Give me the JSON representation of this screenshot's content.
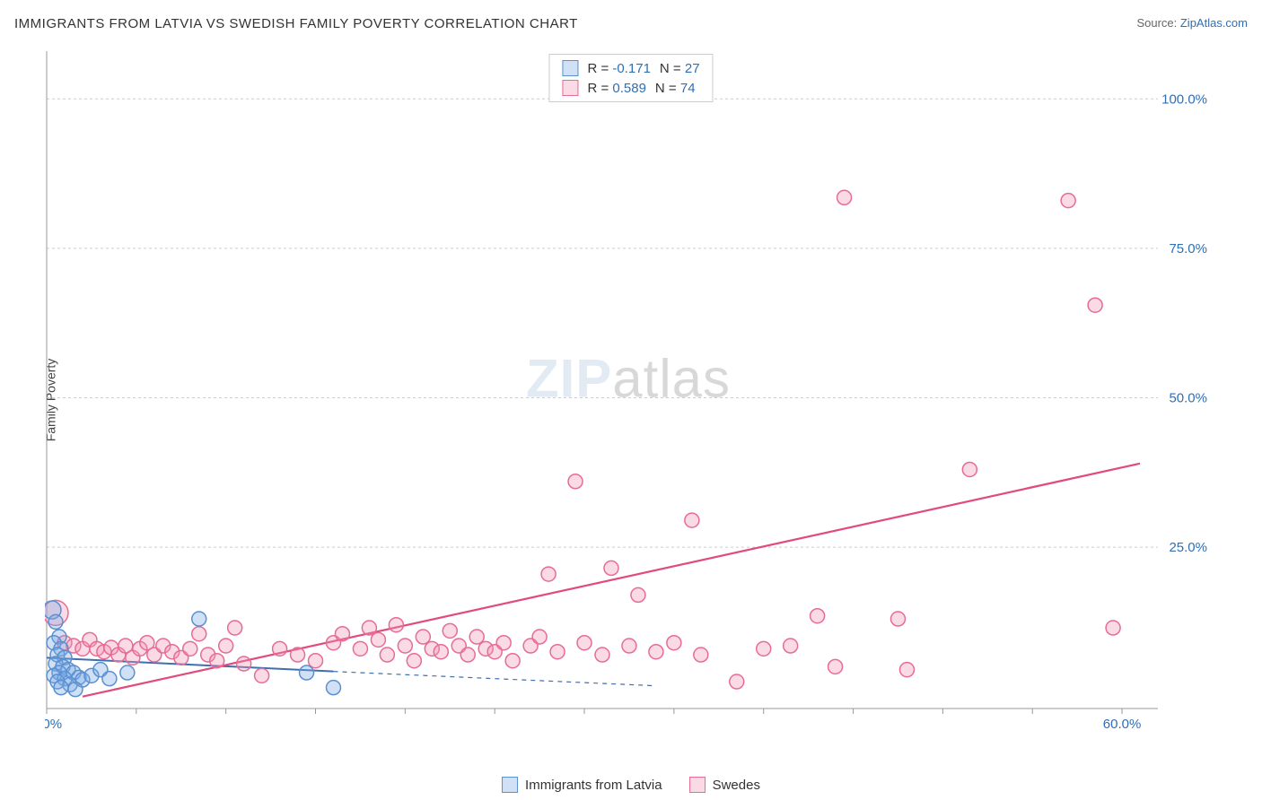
{
  "title": "IMMIGRANTS FROM LATVIA VS SWEDISH FAMILY POVERTY CORRELATION CHART",
  "source": {
    "label": "Source: ",
    "link": "ZipAtlas.com"
  },
  "ylabel": "Family Poverty",
  "watermark": {
    "a": "ZIP",
    "b": "atlas"
  },
  "chart": {
    "type": "scatter",
    "xlim": [
      0,
      62
    ],
    "ylim": [
      -2,
      108
    ],
    "xtick_step": 5,
    "grid_y": [
      25,
      50,
      75,
      100
    ],
    "grid_color": "#cccccc",
    "background": "#ffffff",
    "xticks_labeled": [
      {
        "x": 0,
        "label": "0.0%"
      },
      {
        "x": 60,
        "label": "60.0%"
      }
    ],
    "yticks_labeled": [
      {
        "y": 25,
        "label": "25.0%"
      },
      {
        "y": 50,
        "label": "50.0%"
      },
      {
        "y": 75,
        "label": "75.0%"
      },
      {
        "y": 100,
        "label": "100.0%"
      }
    ],
    "marker_radius": 8,
    "marker_stroke_width": 1.5,
    "series": [
      {
        "id": "latvia",
        "label": "Immigrants from Latvia",
        "fill": "rgba(120,170,230,0.35)",
        "stroke": "#5a8fd0",
        "R": "-0.171",
        "N": "27",
        "regression": {
          "x1": 0,
          "y1": 6.5,
          "x2": 16,
          "y2": 4.2,
          "ext_x2": 34,
          "ext_y2": 1.8,
          "color": "#3e6fb0",
          "width": 2
        },
        "points": [
          {
            "x": 0.3,
            "y": 14.5,
            "r": 10
          },
          {
            "x": 0.5,
            "y": 12.5
          },
          {
            "x": 0.7,
            "y": 10.0
          },
          {
            "x": 0.4,
            "y": 9.0
          },
          {
            "x": 0.8,
            "y": 8.0
          },
          {
            "x": 0.6,
            "y": 7.0
          },
          {
            "x": 1.0,
            "y": 6.5
          },
          {
            "x": 0.5,
            "y": 5.5
          },
          {
            "x": 0.9,
            "y": 5.0
          },
          {
            "x": 1.2,
            "y": 4.5
          },
          {
            "x": 0.7,
            "y": 4.0
          },
          {
            "x": 1.5,
            "y": 4.0
          },
          {
            "x": 0.4,
            "y": 3.5
          },
          {
            "x": 1.0,
            "y": 3.0
          },
          {
            "x": 1.8,
            "y": 3.2
          },
          {
            "x": 0.6,
            "y": 2.5
          },
          {
            "x": 1.3,
            "y": 2.0
          },
          {
            "x": 2.0,
            "y": 2.8
          },
          {
            "x": 0.8,
            "y": 1.5
          },
          {
            "x": 1.6,
            "y": 1.2
          },
          {
            "x": 2.5,
            "y": 3.5
          },
          {
            "x": 3.0,
            "y": 4.5
          },
          {
            "x": 3.5,
            "y": 3.0
          },
          {
            "x": 4.5,
            "y": 4.0
          },
          {
            "x": 8.5,
            "y": 13.0
          },
          {
            "x": 14.5,
            "y": 4.0
          },
          {
            "x": 16.0,
            "y": 1.5
          }
        ]
      },
      {
        "id": "swedes",
        "label": "Swedes",
        "fill": "rgba(240,150,180,0.35)",
        "stroke": "#e86b94",
        "R": "0.589",
        "N": "74",
        "regression": {
          "x1": 2,
          "y1": 0,
          "x2": 61,
          "y2": 39,
          "color": "#e04a7d",
          "width": 2.2
        },
        "points": [
          {
            "x": 0.5,
            "y": 14.0,
            "r": 14
          },
          {
            "x": 1.0,
            "y": 9.0
          },
          {
            "x": 1.5,
            "y": 8.5
          },
          {
            "x": 2.0,
            "y": 8.0
          },
          {
            "x": 2.4,
            "y": 9.5
          },
          {
            "x": 2.8,
            "y": 8.0
          },
          {
            "x": 3.2,
            "y": 7.5
          },
          {
            "x": 3.6,
            "y": 8.2
          },
          {
            "x": 4.0,
            "y": 7.0
          },
          {
            "x": 4.4,
            "y": 8.5
          },
          {
            "x": 4.8,
            "y": 6.5
          },
          {
            "x": 5.2,
            "y": 8.0
          },
          {
            "x": 5.6,
            "y": 9.0
          },
          {
            "x": 6.0,
            "y": 7.0
          },
          {
            "x": 6.5,
            "y": 8.5
          },
          {
            "x": 7.0,
            "y": 7.5
          },
          {
            "x": 7.5,
            "y": 6.5
          },
          {
            "x": 8.0,
            "y": 8.0
          },
          {
            "x": 8.5,
            "y": 10.5
          },
          {
            "x": 9.0,
            "y": 7.0
          },
          {
            "x": 9.5,
            "y": 6.0
          },
          {
            "x": 10.0,
            "y": 8.5
          },
          {
            "x": 10.5,
            "y": 11.5
          },
          {
            "x": 11.0,
            "y": 5.5
          },
          {
            "x": 12.0,
            "y": 3.5
          },
          {
            "x": 13.0,
            "y": 8.0
          },
          {
            "x": 14.0,
            "y": 7.0
          },
          {
            "x": 15.0,
            "y": 6.0
          },
          {
            "x": 16.0,
            "y": 9.0
          },
          {
            "x": 16.5,
            "y": 10.5
          },
          {
            "x": 17.5,
            "y": 8.0
          },
          {
            "x": 18.0,
            "y": 11.5
          },
          {
            "x": 18.5,
            "y": 9.5
          },
          {
            "x": 19.0,
            "y": 7.0
          },
          {
            "x": 19.5,
            "y": 12.0
          },
          {
            "x": 20.0,
            "y": 8.5
          },
          {
            "x": 20.5,
            "y": 6.0
          },
          {
            "x": 21.0,
            "y": 10.0
          },
          {
            "x": 21.5,
            "y": 8.0
          },
          {
            "x": 22.0,
            "y": 7.5
          },
          {
            "x": 22.5,
            "y": 11.0
          },
          {
            "x": 23.0,
            "y": 8.5
          },
          {
            "x": 23.5,
            "y": 7.0
          },
          {
            "x": 24.0,
            "y": 10.0
          },
          {
            "x": 24.5,
            "y": 8.0
          },
          {
            "x": 25.0,
            "y": 7.5
          },
          {
            "x": 25.5,
            "y": 9.0
          },
          {
            "x": 26.0,
            "y": 6.0
          },
          {
            "x": 27.0,
            "y": 8.5
          },
          {
            "x": 27.5,
            "y": 10.0
          },
          {
            "x": 28.0,
            "y": 20.5
          },
          {
            "x": 28.5,
            "y": 7.5
          },
          {
            "x": 29.5,
            "y": 36.0
          },
          {
            "x": 30.0,
            "y": 9.0
          },
          {
            "x": 31.0,
            "y": 7.0
          },
          {
            "x": 31.5,
            "y": 21.5
          },
          {
            "x": 32.5,
            "y": 8.5
          },
          {
            "x": 33.0,
            "y": 17.0
          },
          {
            "x": 34.0,
            "y": 7.5
          },
          {
            "x": 35.0,
            "y": 9.0
          },
          {
            "x": 36.0,
            "y": 29.5
          },
          {
            "x": 36.5,
            "y": 7.0
          },
          {
            "x": 38.5,
            "y": 2.5
          },
          {
            "x": 40.0,
            "y": 8.0
          },
          {
            "x": 41.5,
            "y": 8.5
          },
          {
            "x": 43.0,
            "y": 13.5
          },
          {
            "x": 44.0,
            "y": 5.0
          },
          {
            "x": 44.5,
            "y": 83.5
          },
          {
            "x": 47.5,
            "y": 13.0
          },
          {
            "x": 48.0,
            "y": 4.5
          },
          {
            "x": 51.5,
            "y": 38.0
          },
          {
            "x": 57.0,
            "y": 83.0
          },
          {
            "x": 58.5,
            "y": 65.5
          },
          {
            "x": 59.5,
            "y": 11.5
          }
        ]
      }
    ]
  },
  "legend_bottom": [
    {
      "series": "latvia",
      "label": "Immigrants from Latvia"
    },
    {
      "series": "swedes",
      "label": "Swedes"
    }
  ]
}
